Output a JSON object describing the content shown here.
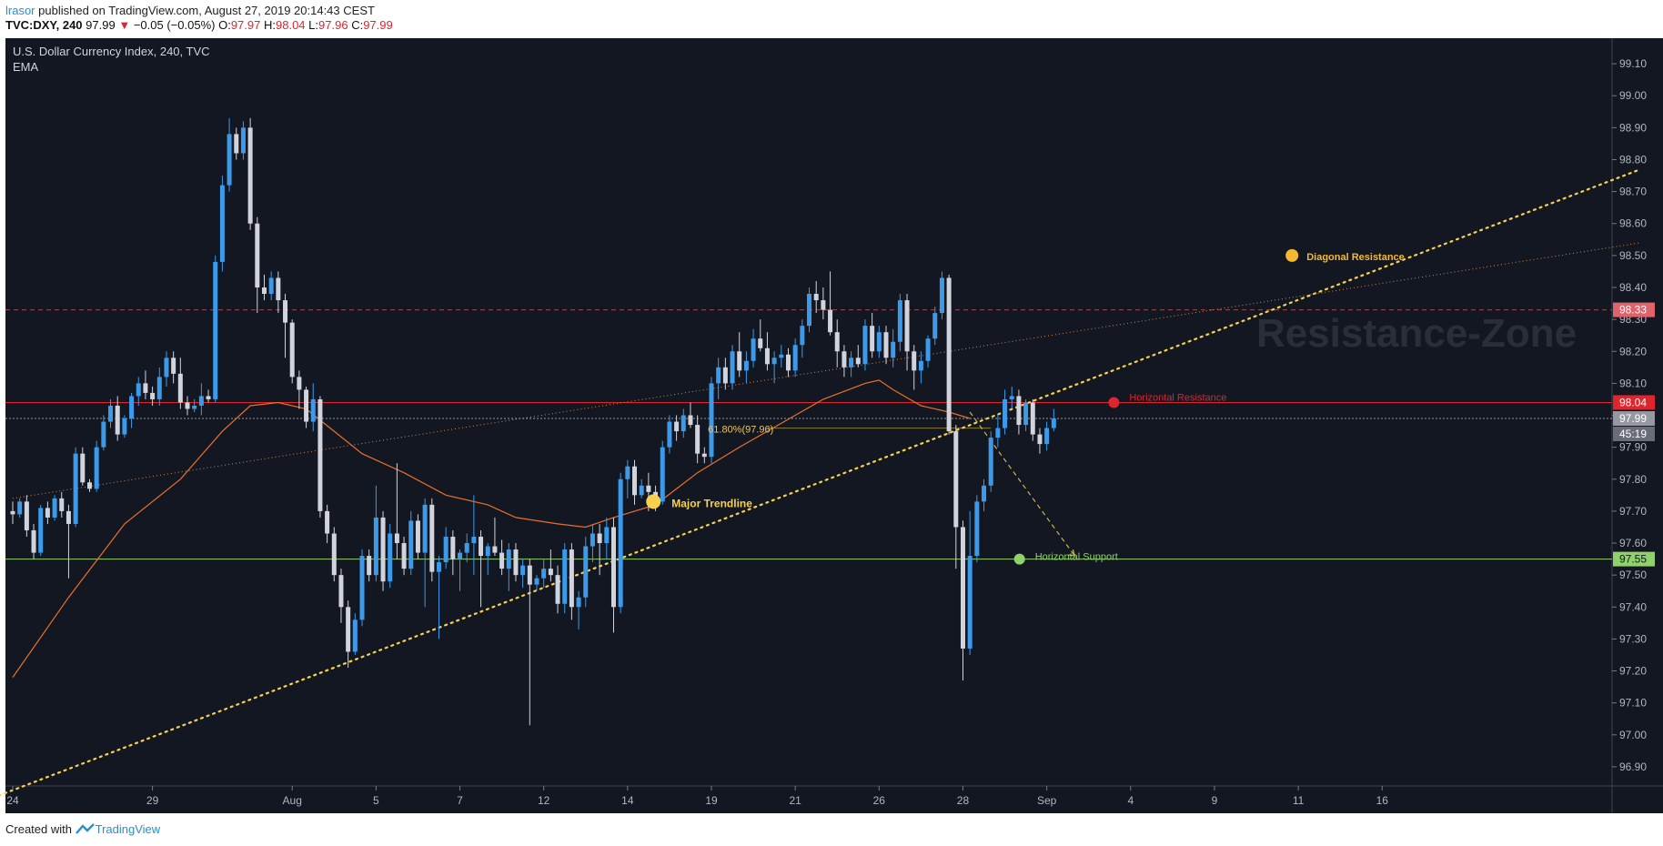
{
  "header": {
    "user": "lrasor",
    "published_text": "published on TradingView.com, August 27, 2019 20:14:43 CEST",
    "symbol": "TVC:DXY, 240",
    "last": "97.99",
    "change": "−0.05 (−0.05%)",
    "o_label": "O:",
    "o_value": "97.97",
    "h_label": "H:",
    "h_value": "98.04",
    "l_label": "L:",
    "l_value": "97.96",
    "c_label": "C:",
    "c_value": "97.99"
  },
  "footer": {
    "created_with": "Created with",
    "brand": "TradingView"
  },
  "colors": {
    "background": "#131722",
    "up": "#3d9ae8",
    "down": "#d1d4dc",
    "ema": "#e8702a",
    "trendline": "#f7d34d",
    "resistance": "#e0242c",
    "support": "#8fd16b"
  },
  "chart_data": {
    "type": "candlestick",
    "title": "U.S. Dollar Currency Index, 240, TVC",
    "indicator": "EMA",
    "ylim": [
      96.84,
      99.18
    ],
    "y_ticks": [
      99.1,
      99.0,
      98.9,
      98.8,
      98.7,
      98.6,
      98.5,
      98.4,
      98.3,
      98.2,
      98.1,
      98.0,
      97.9,
      97.8,
      97.7,
      97.6,
      97.5,
      97.4,
      97.3,
      97.2,
      97.1,
      97.0,
      96.9
    ],
    "x_ticks": [
      {
        "label": "24",
        "bar": 0
      },
      {
        "label": "29",
        "bar": 20
      },
      {
        "label": "Aug",
        "bar": 40
      },
      {
        "label": "5",
        "bar": 52
      },
      {
        "label": "7",
        "bar": 64
      },
      {
        "label": "12",
        "bar": 76
      },
      {
        "label": "14",
        "bar": 88
      },
      {
        "label": "19",
        "bar": 100
      },
      {
        "label": "21",
        "bar": 112
      },
      {
        "label": "26",
        "bar": 124
      },
      {
        "label": "28",
        "bar": 136
      },
      {
        "label": "Sep",
        "bar": 148
      },
      {
        "label": "4",
        "bar": 160
      },
      {
        "label": "9",
        "bar": 172
      },
      {
        "label": "11",
        "bar": 184
      },
      {
        "label": "16",
        "bar": 196
      }
    ],
    "price_labels": [
      {
        "value": 98.33,
        "text": "98.33",
        "type": "diagonal-resistance"
      },
      {
        "value": 98.04,
        "text": "98.04",
        "type": "horizontal-resistance"
      },
      {
        "value": 97.99,
        "text": "97.99",
        "type": "last-price"
      },
      {
        "value": 97.55,
        "text": "97.55",
        "type": "horizontal-support"
      }
    ],
    "countdown": "45:19",
    "watermark": "Resistance-Zone",
    "annotations": {
      "major_trendline": "Major Trendline",
      "horizontal_resistance": "Horizontal Resistance",
      "horizontal_support": "Horizontal Support",
      "diagonal_resistance": "Diagonal Resistance",
      "fib": "61.80%(97.96)"
    },
    "levels": {
      "resistance": 98.04,
      "support": 97.55,
      "last": 97.99,
      "dashed": 98.33,
      "fib": 97.96
    },
    "trendline": [
      [
        -2,
        96.81
      ],
      [
        233,
        98.77
      ]
    ],
    "diagonal_resistance": [
      [
        0,
        97.74
      ],
      [
        233,
        98.54
      ]
    ],
    "projection": [
      [
        137,
        98.01
      ],
      [
        152,
        97.56
      ]
    ],
    "ema_points": [
      [
        0,
        97.18
      ],
      [
        8,
        97.43
      ],
      [
        16,
        97.66
      ],
      [
        24,
        97.8
      ],
      [
        30,
        97.95
      ],
      [
        34,
        98.03
      ],
      [
        38,
        98.04
      ],
      [
        42,
        98.02
      ],
      [
        46,
        97.95
      ],
      [
        50,
        97.88
      ],
      [
        56,
        97.82
      ],
      [
        62,
        97.75
      ],
      [
        68,
        97.72
      ],
      [
        72,
        97.68
      ],
      [
        78,
        97.66
      ],
      [
        82,
        97.65
      ],
      [
        86,
        97.68
      ],
      [
        92,
        97.72
      ],
      [
        98,
        97.82
      ],
      [
        104,
        97.9
      ],
      [
        108,
        97.95
      ],
      [
        112,
        98.0
      ],
      [
        116,
        98.05
      ],
      [
        122,
        98.1
      ],
      [
        124,
        98.11
      ],
      [
        126,
        98.08
      ],
      [
        130,
        98.03
      ],
      [
        134,
        98.01
      ],
      [
        137,
        97.99
      ]
    ],
    "candles": [
      [
        97.7,
        97.73,
        97.66,
        97.69
      ],
      [
        97.69,
        97.74,
        97.68,
        97.73
      ],
      [
        97.73,
        97.75,
        97.62,
        97.64
      ],
      [
        97.64,
        97.66,
        97.55,
        97.57
      ],
      [
        97.57,
        97.72,
        97.56,
        97.71
      ],
      [
        97.71,
        97.73,
        97.66,
        97.68
      ],
      [
        97.68,
        97.75,
        97.67,
        97.74
      ],
      [
        97.74,
        97.76,
        97.68,
        97.7
      ],
      [
        97.7,
        97.72,
        97.49,
        97.66
      ],
      [
        97.66,
        97.9,
        97.65,
        97.88
      ],
      [
        97.88,
        97.9,
        97.78,
        97.79
      ],
      [
        97.79,
        97.8,
        97.76,
        97.77
      ],
      [
        97.77,
        97.92,
        97.76,
        97.9
      ],
      [
        97.9,
        98.0,
        97.89,
        97.98
      ],
      [
        97.98,
        98.05,
        97.96,
        98.03
      ],
      [
        98.03,
        98.06,
        97.92,
        97.94
      ],
      [
        97.94,
        98.0,
        97.93,
        97.99
      ],
      [
        97.99,
        98.07,
        97.96,
        98.06
      ],
      [
        98.06,
        98.12,
        98.03,
        98.1
      ],
      [
        98.1,
        98.14,
        98.05,
        98.07
      ],
      [
        98.07,
        98.09,
        98.03,
        98.05
      ],
      [
        98.05,
        98.15,
        98.03,
        98.12
      ],
      [
        98.12,
        98.2,
        98.09,
        98.18
      ],
      [
        98.18,
        98.2,
        98.1,
        98.13
      ],
      [
        98.13,
        98.18,
        98.02,
        98.04
      ],
      [
        98.04,
        98.06,
        98.0,
        98.02
      ],
      [
        98.02,
        98.05,
        98.01,
        98.03
      ],
      [
        98.03,
        98.1,
        98.0,
        98.06
      ],
      [
        98.06,
        98.08,
        98.04,
        98.05
      ],
      [
        98.05,
        98.5,
        98.04,
        98.48
      ],
      [
        98.48,
        98.75,
        98.45,
        98.72
      ],
      [
        98.72,
        98.93,
        98.7,
        98.88
      ],
      [
        98.88,
        98.9,
        98.8,
        98.82
      ],
      [
        98.82,
        98.92,
        98.8,
        98.9
      ],
      [
        98.9,
        98.93,
        98.58,
        98.6
      ],
      [
        98.6,
        98.62,
        98.32,
        98.4
      ],
      [
        98.4,
        98.44,
        98.36,
        98.38
      ],
      [
        98.38,
        98.45,
        98.36,
        98.43
      ],
      [
        98.43,
        98.45,
        98.32,
        98.36
      ],
      [
        98.36,
        98.38,
        98.18,
        98.29
      ]
    ],
    "candles_2": [
      [
        98.29,
        98.3,
        98.1,
        98.12
      ],
      [
        98.12,
        98.14,
        98.02,
        98.08
      ],
      [
        98.08,
        98.09,
        97.96,
        97.98
      ],
      [
        97.98,
        98.1,
        97.95,
        98.05
      ],
      [
        98.05,
        98.06,
        97.68,
        97.7
      ],
      [
        97.7,
        97.72,
        97.6,
        97.63
      ],
      [
        97.63,
        97.65,
        97.48,
        97.5
      ],
      [
        97.5,
        97.52,
        97.35,
        97.4
      ],
      [
        97.4,
        97.42,
        97.21,
        97.26
      ],
      [
        97.26,
        97.38,
        97.25,
        97.36
      ],
      [
        97.36,
        97.58,
        97.34,
        97.56
      ],
      [
        97.56,
        97.58,
        97.48,
        97.5
      ],
      [
        97.5,
        97.78,
        97.48,
        97.68
      ],
      [
        97.68,
        97.7,
        97.45,
        97.48
      ],
      [
        97.48,
        97.66,
        97.46,
        97.63
      ],
      [
        97.63,
        97.85,
        97.55,
        97.6
      ],
      [
        97.6,
        97.62,
        97.5,
        97.52
      ],
      [
        97.52,
        97.7,
        97.5,
        97.67
      ],
      [
        97.67,
        97.69,
        97.55,
        97.57
      ],
      [
        97.57,
        97.74,
        97.4,
        97.72
      ],
      [
        97.72,
        97.74,
        97.48,
        97.51
      ],
      [
        97.51,
        97.56,
        97.3,
        97.54
      ],
      [
        97.54,
        97.65,
        97.52,
        97.62
      ],
      [
        97.62,
        97.64,
        97.5,
        97.55
      ],
      [
        97.55,
        97.58,
        97.45,
        97.57
      ],
      [
        97.57,
        97.63,
        97.54,
        97.6
      ],
      [
        97.6,
        97.75,
        97.5,
        97.62
      ],
      [
        97.62,
        97.64,
        97.4,
        97.56
      ],
      [
        97.56,
        97.6,
        97.5,
        97.59
      ],
      [
        97.59,
        97.68,
        97.56,
        97.57
      ],
      [
        97.57,
        97.61,
        97.5,
        97.52
      ],
      [
        97.52,
        97.6,
        97.45,
        97.58
      ],
      [
        97.58,
        97.6,
        97.48,
        97.5
      ],
      [
        97.5,
        97.55,
        97.46,
        97.53
      ],
      [
        97.53,
        97.55,
        97.03,
        97.47
      ],
      [
        97.47,
        97.5,
        97.45,
        97.49
      ],
      [
        97.49,
        97.55,
        97.46,
        97.52
      ],
      [
        97.52,
        97.58,
        97.48,
        97.5
      ],
      [
        97.5,
        97.53,
        97.38,
        97.41
      ],
      [
        97.41,
        97.6,
        97.38,
        97.58
      ],
      [
        97.58,
        97.6,
        97.36,
        97.4
      ],
      [
        97.4,
        97.45,
        97.33,
        97.43
      ],
      [
        97.43,
        97.62,
        97.4,
        97.59
      ],
      [
        97.59,
        97.66,
        97.54,
        97.63
      ]
    ],
    "candles_3": [
      [
        97.63,
        97.66,
        97.5,
        97.6
      ],
      [
        97.6,
        97.68,
        97.55,
        97.65
      ],
      [
        97.65,
        97.68,
        97.32,
        97.4
      ],
      [
        97.4,
        97.82,
        97.38,
        97.8
      ],
      [
        97.8,
        97.86,
        97.74,
        97.84
      ],
      [
        97.84,
        97.86,
        97.72,
        97.75
      ],
      [
        97.75,
        97.8,
        97.74,
        97.78
      ],
      [
        97.78,
        97.82,
        97.7,
        97.76
      ],
      [
        97.76,
        97.78,
        97.7,
        97.73
      ],
      [
        97.73,
        97.92,
        97.72,
        97.9
      ],
      [
        97.9,
        98.0,
        97.88,
        97.98
      ],
      [
        97.98,
        98.0,
        97.92,
        97.95
      ],
      [
        97.95,
        98.02,
        97.93,
        98.0
      ],
      [
        98.0,
        98.04,
        97.96,
        97.97
      ],
      [
        97.97,
        98.0,
        97.85,
        97.88
      ],
      [
        97.88,
        97.9,
        97.85,
        97.87
      ],
      [
        97.87,
        98.12,
        97.85,
        98.1
      ],
      [
        98.1,
        98.18,
        98.05,
        98.15
      ],
      [
        98.15,
        98.18,
        98.08,
        98.1
      ],
      [
        98.1,
        98.22,
        98.08,
        98.2
      ],
      [
        98.2,
        98.26,
        98.12,
        98.14
      ],
      [
        98.14,
        98.2,
        98.1,
        98.17
      ],
      [
        98.17,
        98.27,
        98.15,
        98.24
      ],
      [
        98.24,
        98.3,
        98.2,
        98.21
      ],
      [
        98.21,
        98.26,
        98.14,
        98.16
      ],
      [
        98.16,
        98.2,
        98.1,
        98.18
      ],
      [
        98.18,
        98.22,
        98.15,
        98.19
      ],
      [
        98.19,
        98.21,
        98.12,
        98.14
      ],
      [
        98.14,
        98.24,
        98.12,
        98.22
      ],
      [
        98.22,
        98.3,
        98.18,
        98.28
      ],
      [
        98.28,
        98.4,
        98.26,
        98.38
      ],
      [
        98.38,
        98.42,
        98.32,
        98.36
      ],
      [
        98.36,
        98.4,
        98.3,
        98.33
      ],
      [
        98.33,
        98.45,
        98.25,
        98.26
      ],
      [
        98.26,
        98.3,
        98.15,
        98.2
      ],
      [
        98.2,
        98.22,
        98.12,
        98.15
      ],
      [
        98.15,
        98.2,
        98.12,
        98.18
      ],
      [
        98.18,
        98.22,
        98.15,
        98.16
      ],
      [
        98.16,
        98.3,
        98.14,
        98.28
      ],
      [
        98.28,
        98.32,
        98.18,
        98.2
      ]
    ],
    "candles_4": [
      [
        98.2,
        98.28,
        98.18,
        98.26
      ],
      [
        98.26,
        98.28,
        98.16,
        98.18
      ],
      [
        98.18,
        98.27,
        98.15,
        98.23
      ],
      [
        98.23,
        98.38,
        98.2,
        98.36
      ],
      [
        98.36,
        98.38,
        98.14,
        98.2
      ],
      [
        98.2,
        98.22,
        98.08,
        98.14
      ],
      [
        98.14,
        98.2,
        98.1,
        98.17
      ],
      [
        98.17,
        98.25,
        98.15,
        98.24
      ],
      [
        98.24,
        98.34,
        98.22,
        98.32
      ],
      [
        98.32,
        98.45,
        98.3,
        98.43
      ],
      [
        98.43,
        98.44,
        97.94,
        97.95
      ],
      [
        97.95,
        97.97,
        97.52,
        97.65
      ],
      [
        97.65,
        97.67,
        97.17,
        97.27
      ],
      [
        97.27,
        97.7,
        97.25,
        97.56
      ],
      [
        97.56,
        97.75,
        97.54,
        97.73
      ],
      [
        97.73,
        97.8,
        97.7,
        97.78
      ],
      [
        97.78,
        97.95,
        97.76,
        97.93
      ],
      [
        97.93,
        98.0,
        97.9,
        97.96
      ],
      [
        97.96,
        98.08,
        97.94,
        98.05
      ],
      [
        98.05,
        98.09,
        98.02,
        98.06
      ],
      [
        98.06,
        98.08,
        97.94,
        97.97
      ],
      [
        97.97,
        98.05,
        97.95,
        98.04
      ],
      [
        98.04,
        98.05,
        97.92,
        97.94
      ],
      [
        97.94,
        97.96,
        97.88,
        97.91
      ],
      [
        97.91,
        97.98,
        97.89,
        97.96
      ],
      [
        97.96,
        98.02,
        97.95,
        97.99
      ]
    ]
  }
}
